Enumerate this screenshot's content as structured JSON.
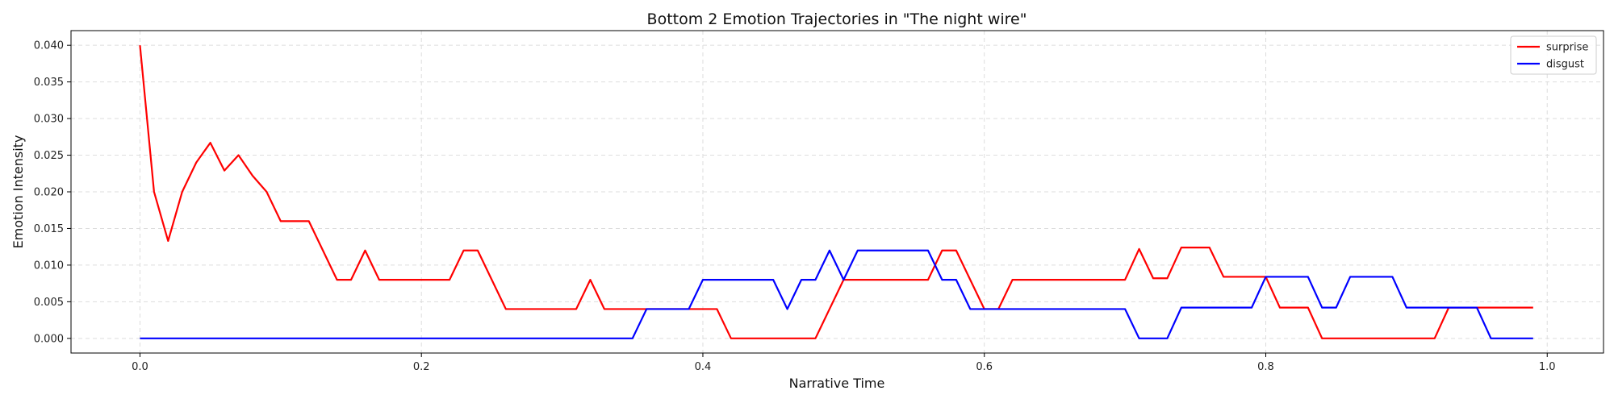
{
  "chart_data": {
    "type": "line",
    "title": "Bottom 2 Emotion Trajectories in \"The night wire\"",
    "xlabel": "Narrative Time",
    "ylabel": "Emotion Intensity",
    "xlim": [
      -0.049,
      1.04
    ],
    "ylim": [
      -0.002,
      0.042
    ],
    "xticks": [
      0.0,
      0.2,
      0.4,
      0.6,
      0.8,
      1.0
    ],
    "xtick_labels": [
      "0.0",
      "0.2",
      "0.4",
      "0.6",
      "0.8",
      "1.0"
    ],
    "yticks": [
      0.0,
      0.005,
      0.01,
      0.015,
      0.02,
      0.025,
      0.03,
      0.035,
      0.04
    ],
    "ytick_labels": [
      "0.000",
      "0.005",
      "0.010",
      "0.015",
      "0.020",
      "0.025",
      "0.030",
      "0.035",
      "0.040"
    ],
    "grid": true,
    "legend": "top-right",
    "x": [
      0.0,
      0.01,
      0.02,
      0.03,
      0.04,
      0.05,
      0.06,
      0.07,
      0.08,
      0.09,
      0.1,
      0.11,
      0.12,
      0.13,
      0.14,
      0.15,
      0.16,
      0.17,
      0.18,
      0.19,
      0.2,
      0.21,
      0.22,
      0.23,
      0.24,
      0.25,
      0.26,
      0.27,
      0.28,
      0.29,
      0.3,
      0.31,
      0.32,
      0.33,
      0.34,
      0.35,
      0.36,
      0.37,
      0.38,
      0.39,
      0.4,
      0.41,
      0.42,
      0.43,
      0.44,
      0.45,
      0.46,
      0.47,
      0.48,
      0.49,
      0.5,
      0.51,
      0.52,
      0.53,
      0.54,
      0.55,
      0.56,
      0.57,
      0.58,
      0.59,
      0.6,
      0.61,
      0.62,
      0.63,
      0.64,
      0.65,
      0.66,
      0.67,
      0.68,
      0.69,
      0.7,
      0.71,
      0.72,
      0.73,
      0.74,
      0.75,
      0.76,
      0.77,
      0.78,
      0.79,
      0.8,
      0.81,
      0.82,
      0.83,
      0.84,
      0.85,
      0.86,
      0.87,
      0.88,
      0.89,
      0.9,
      0.91,
      0.92,
      0.93,
      0.94,
      0.95,
      0.96,
      0.97,
      0.98,
      0.99
    ],
    "series": [
      {
        "name": "surprise",
        "color": "#ff0000",
        "values": [
          0.04,
          0.02,
          0.0133,
          0.02,
          0.024,
          0.0267,
          0.0229,
          0.025,
          0.0222,
          0.02,
          0.016,
          0.016,
          0.016,
          0.012,
          0.008,
          0.008,
          0.012,
          0.008,
          0.008,
          0.008,
          0.008,
          0.008,
          0.008,
          0.012,
          0.012,
          0.008,
          0.004,
          0.004,
          0.004,
          0.004,
          0.004,
          0.004,
          0.008,
          0.004,
          0.004,
          0.004,
          0.004,
          0.004,
          0.004,
          0.004,
          0.004,
          0.004,
          0.0,
          0.0,
          0.0,
          0.0,
          0.0,
          0.0,
          0.0,
          0.004,
          0.008,
          0.008,
          0.008,
          0.008,
          0.008,
          0.008,
          0.008,
          0.012,
          0.012,
          0.008,
          0.004,
          0.004,
          0.008,
          0.008,
          0.008,
          0.008,
          0.008,
          0.008,
          0.008,
          0.008,
          0.008,
          0.0122,
          0.0082,
          0.0082,
          0.0124,
          0.0124,
          0.0124,
          0.0084,
          0.0084,
          0.0084,
          0.0084,
          0.0042,
          0.0042,
          0.0042,
          0.0,
          0.0,
          0.0,
          0.0,
          0.0,
          0.0,
          0.0,
          0.0,
          0.0,
          0.0042,
          0.0042,
          0.0042,
          0.0042,
          0.0042,
          0.0042,
          0.0042
        ]
      },
      {
        "name": "disgust",
        "color": "#0000ff",
        "values": [
          0.0,
          0.0,
          0.0,
          0.0,
          0.0,
          0.0,
          0.0,
          0.0,
          0.0,
          0.0,
          0.0,
          0.0,
          0.0,
          0.0,
          0.0,
          0.0,
          0.0,
          0.0,
          0.0,
          0.0,
          0.0,
          0.0,
          0.0,
          0.0,
          0.0,
          0.0,
          0.0,
          0.0,
          0.0,
          0.0,
          0.0,
          0.0,
          0.0,
          0.0,
          0.0,
          0.0,
          0.004,
          0.004,
          0.004,
          0.004,
          0.008,
          0.008,
          0.008,
          0.008,
          0.008,
          0.008,
          0.004,
          0.008,
          0.008,
          0.012,
          0.008,
          0.012,
          0.012,
          0.012,
          0.012,
          0.012,
          0.012,
          0.008,
          0.008,
          0.004,
          0.004,
          0.004,
          0.004,
          0.004,
          0.004,
          0.004,
          0.004,
          0.004,
          0.004,
          0.004,
          0.004,
          0.0,
          0.0,
          0.0,
          0.0042,
          0.0042,
          0.0042,
          0.0042,
          0.0042,
          0.0042,
          0.0084,
          0.0084,
          0.0084,
          0.0084,
          0.0042,
          0.0042,
          0.0084,
          0.0084,
          0.0084,
          0.0084,
          0.0042,
          0.0042,
          0.0042,
          0.0042,
          0.0042,
          0.0042,
          0.0,
          0.0,
          0.0,
          0.0
        ]
      }
    ]
  }
}
